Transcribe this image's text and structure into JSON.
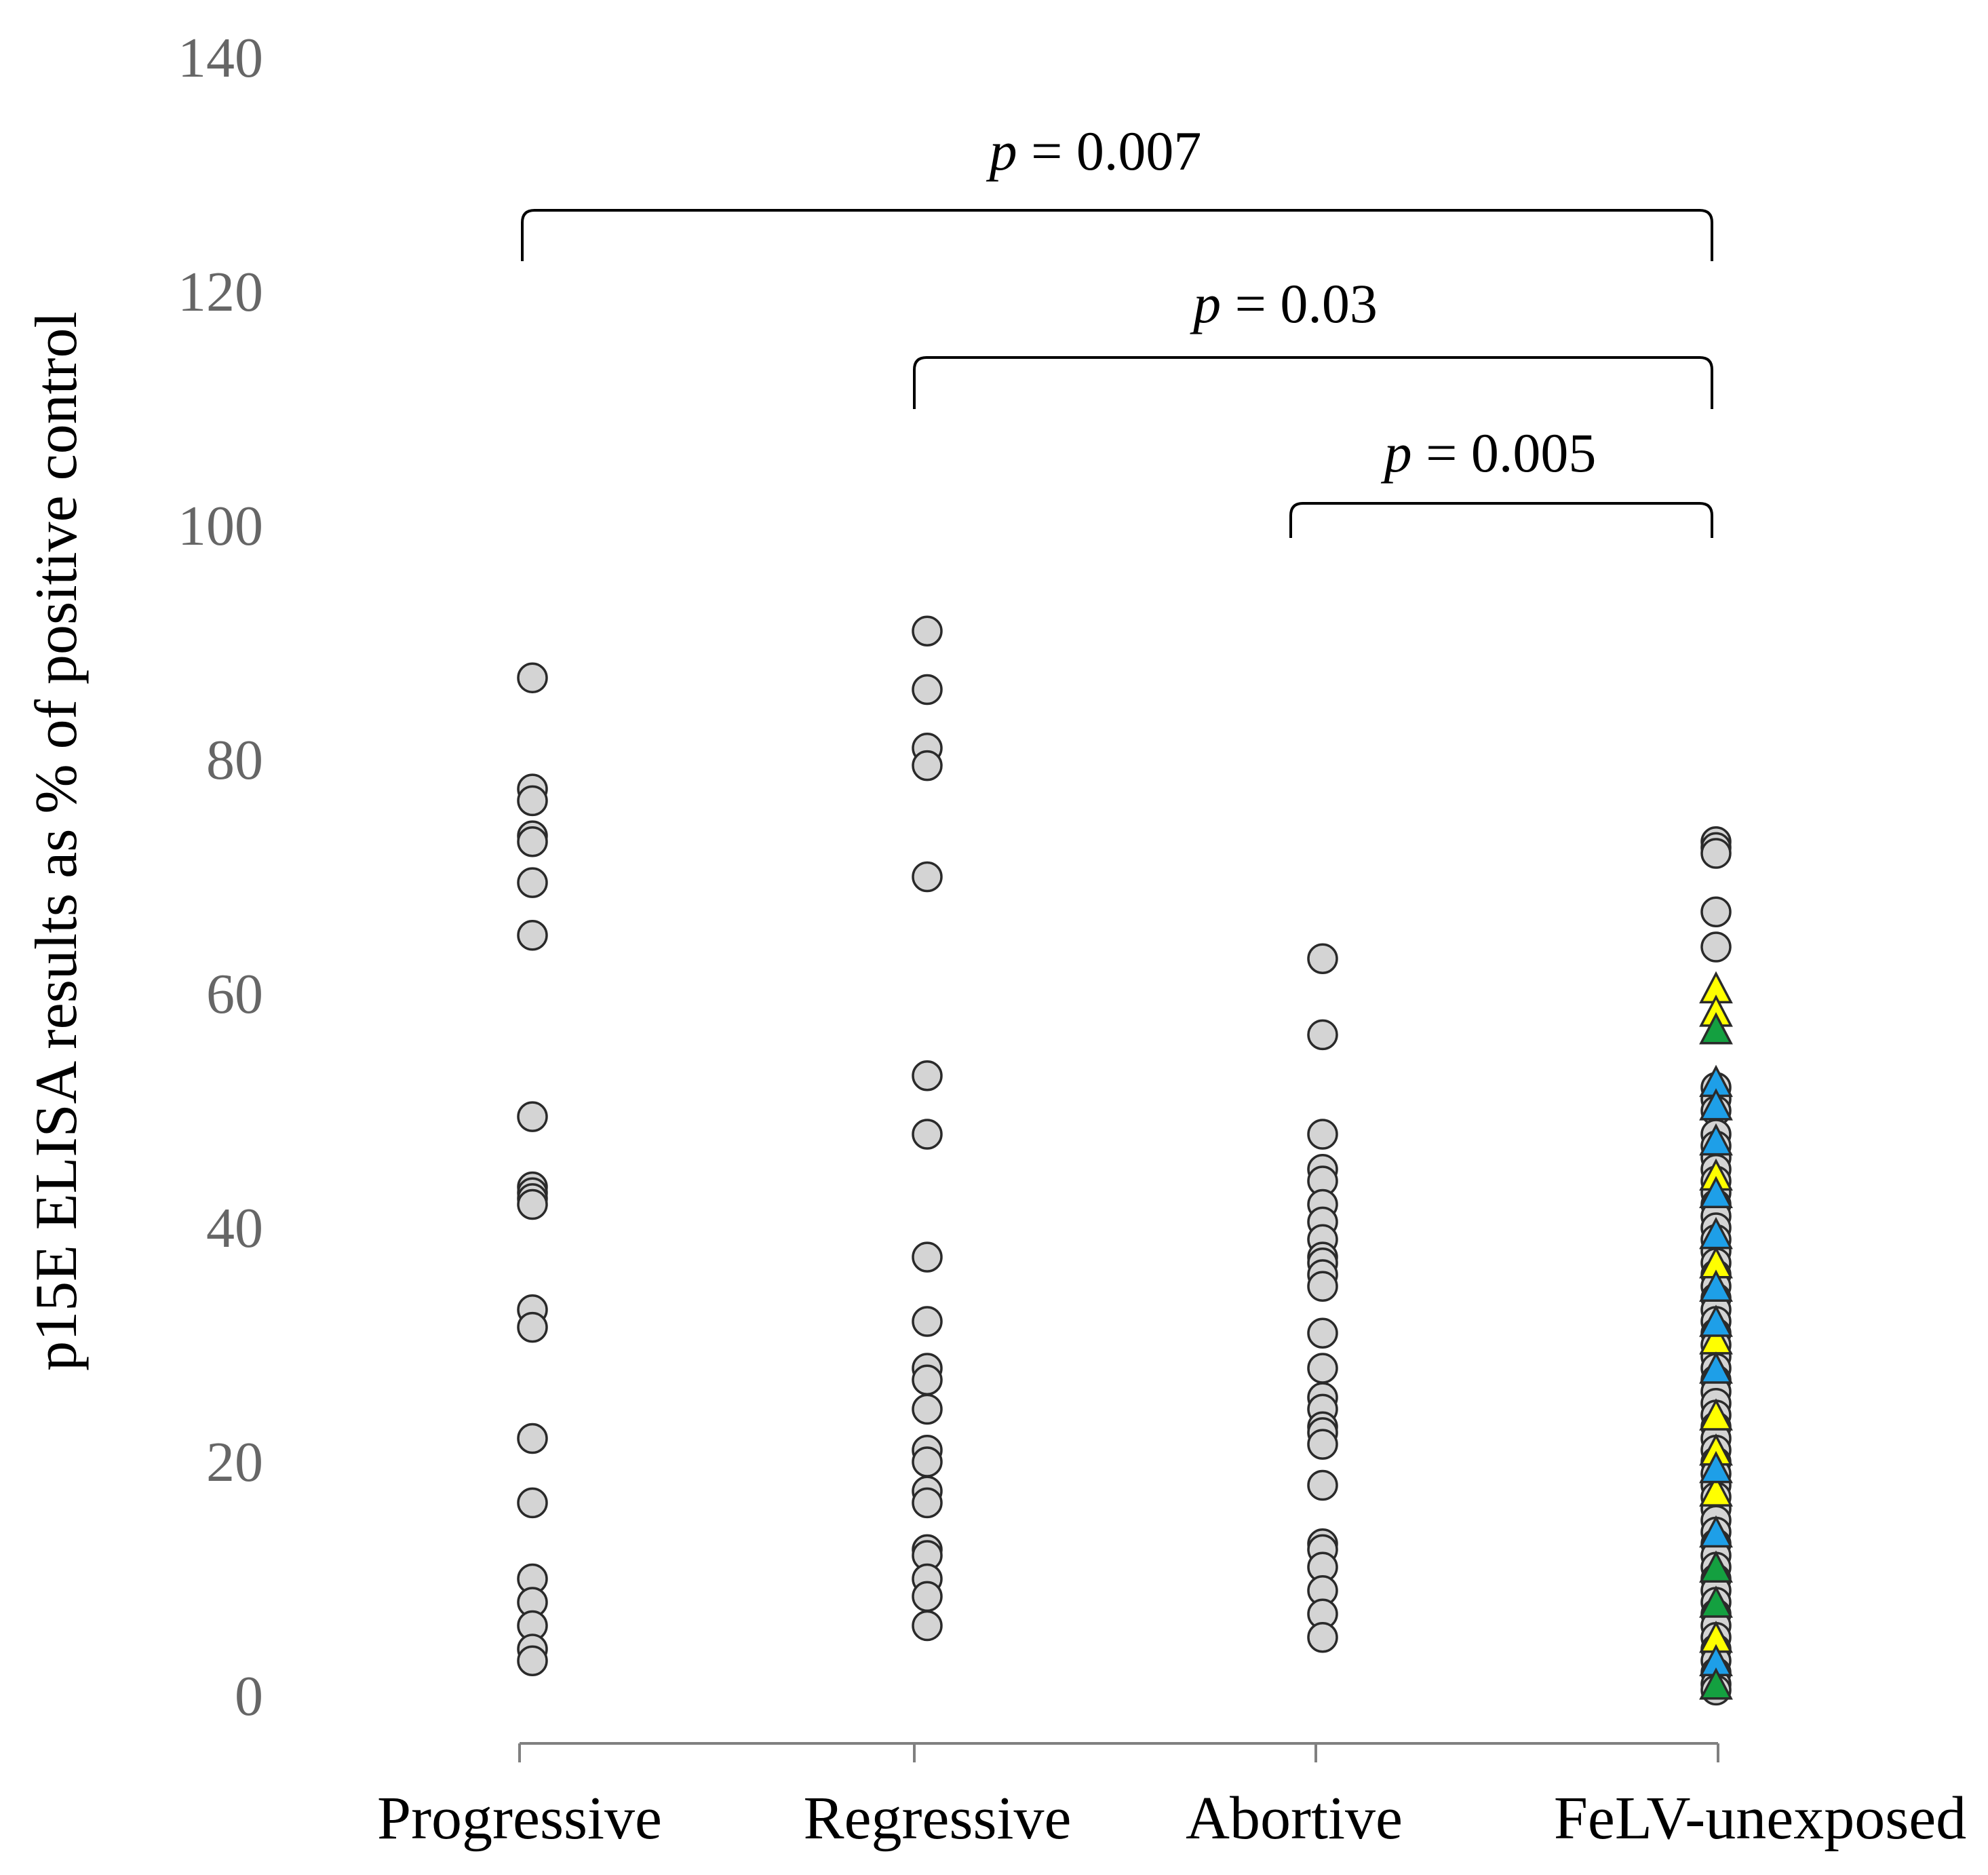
{
  "chart_data": {
    "type": "scatter",
    "title": "",
    "xlabel": "",
    "ylabel": "p15E ELISA results as % of positive control",
    "ylim": [
      0,
      140
    ],
    "yticks": [
      0,
      20,
      40,
      60,
      80,
      100,
      120,
      140
    ],
    "categories": [
      "Progressive",
      "Regressive",
      "Abortive",
      "FeLV-unexposed"
    ],
    "grid": false,
    "series": [
      {
        "name": "Progressive",
        "marker": "circle",
        "color": "#d4d4d4",
        "values": [
          87,
          77.5,
          76.5,
          73.5,
          73,
          69.5,
          65,
          49.5,
          43.5,
          43,
          42.5,
          42,
          33,
          31.5,
          22,
          16.5,
          10,
          8,
          6,
          4,
          3
        ]
      },
      {
        "name": "Regressive",
        "marker": "circle",
        "color": "#d4d4d4",
        "values": [
          91,
          86,
          81,
          79.5,
          70,
          53,
          48,
          37.5,
          32,
          28,
          27,
          24.5,
          21,
          20,
          17.5,
          16.5,
          12.5,
          12,
          10,
          8.5,
          6
        ]
      },
      {
        "name": "Abortive",
        "marker": "circle",
        "color": "#d4d4d4",
        "values": [
          63,
          56.5,
          48,
          45,
          44,
          42,
          40.5,
          39,
          37.5,
          37,
          36,
          35,
          31,
          28,
          25.5,
          24.5,
          23,
          22.5,
          21.5,
          18,
          13,
          12.5,
          11,
          9,
          7,
          5
        ]
      },
      {
        "name": "FeLV-unexposed",
        "marker": "circle",
        "color": "#d4d4d4",
        "values": [
          73,
          72.5,
          72,
          67,
          64,
          52,
          51,
          50,
          48,
          47,
          46,
          45,
          44,
          43,
          42,
          41,
          40,
          39,
          38,
          37,
          36,
          35,
          34,
          33,
          32,
          31,
          30,
          29,
          28,
          27,
          26,
          25,
          24,
          23,
          22,
          21,
          20,
          19,
          18,
          17,
          16,
          15,
          14,
          13,
          12,
          11,
          10,
          9,
          8,
          7,
          6,
          5,
          4,
          3,
          2,
          1,
          0.5
        ]
      },
      {
        "name": "FeLV-unexposed (yellow)",
        "marker": "triangle",
        "color": "#ffff00",
        "values": [
          60.5,
          58.5,
          44.5,
          37,
          30.5,
          24,
          21,
          17.5,
          5
        ]
      },
      {
        "name": "FeLV-unexposed (blue)",
        "marker": "triangle",
        "color": "#1e9fe8",
        "values": [
          52.5,
          50.5,
          47.5,
          43,
          39.5,
          35,
          32,
          28,
          19.5,
          14,
          3
        ]
      },
      {
        "name": "FeLV-unexposed (green)",
        "marker": "triangle",
        "color": "#14a040",
        "values": [
          57,
          11,
          8,
          1
        ]
      }
    ],
    "annotations": [
      {
        "text": "p = 0.007",
        "p_symbol": "p",
        "value_text": " = 0.007",
        "from": "Progressive",
        "to": "FeLV-unexposed"
      },
      {
        "text": "p = 0.03",
        "p_symbol": "p",
        "value_text": " = 0.03",
        "from": "Regressive",
        "to": "FeLV-unexposed"
      },
      {
        "text": "p = 0.005",
        "p_symbol": "p",
        "value_text": " = 0.005",
        "from": "Abortive",
        "to": "FeLV-unexposed"
      }
    ]
  }
}
